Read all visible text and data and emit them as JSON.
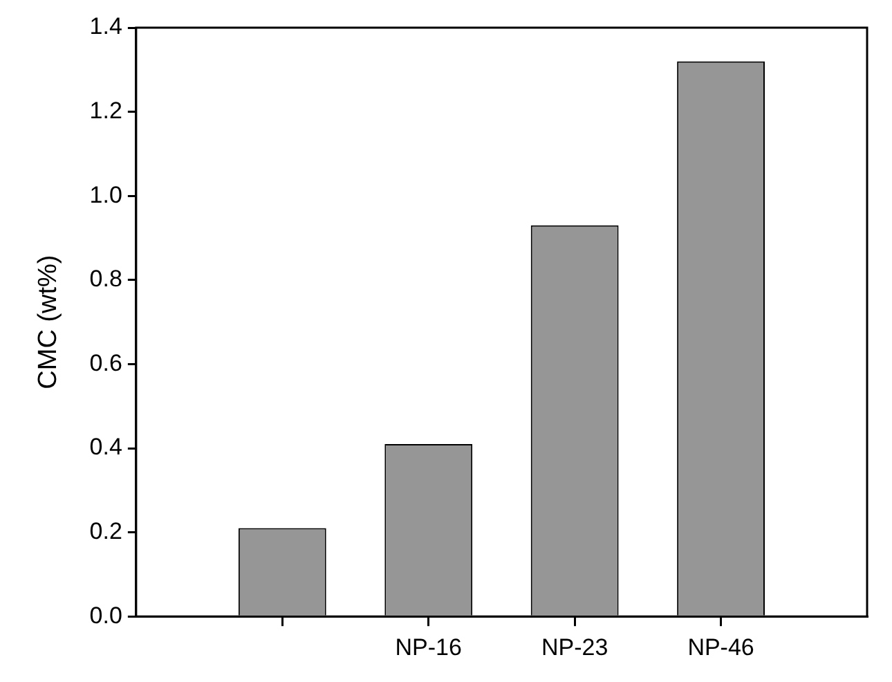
{
  "chart_data": {
    "type": "bar",
    "ylabel": "CMC (wt%)",
    "categories": [
      null,
      "NP-16",
      "NP-23",
      "NP-46"
    ],
    "values": [
      0.21,
      0.41,
      0.93,
      1.32
    ],
    "color": "#969696",
    "ylim": [
      0,
      1.4
    ],
    "yticks": [
      {
        "value": 0,
        "label": "0.0"
      },
      0.2,
      0.4,
      0.6,
      0.8,
      {
        "value": 1,
        "label": "1.0"
      },
      1.2,
      1.4
    ],
    "grid": false,
    "legend": false
  }
}
